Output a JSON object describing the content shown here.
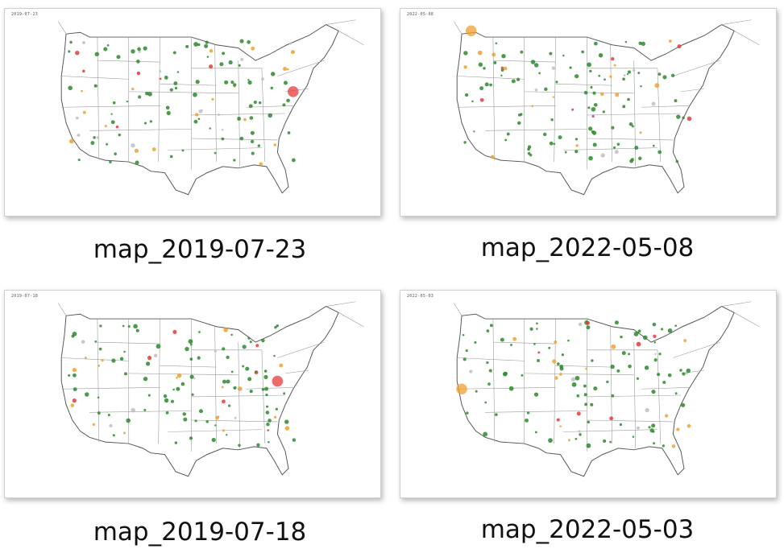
{
  "files": [
    {
      "caption": "map_2019-07-23",
      "map_date": "2019-07-23"
    },
    {
      "caption": "map_2022-05-08",
      "map_date": "2022-05-08"
    },
    {
      "caption": "map_2019-07-18",
      "map_date": "2019-07-18"
    },
    {
      "caption": "map_2022-05-03",
      "map_date": "2022-05-03"
    }
  ],
  "colors": {
    "good": "#2d8a2d",
    "moderate": "#f0a030",
    "unhealthy": "#e83a3a",
    "no_data": "#c0c0c0",
    "outline": "#555555"
  }
}
